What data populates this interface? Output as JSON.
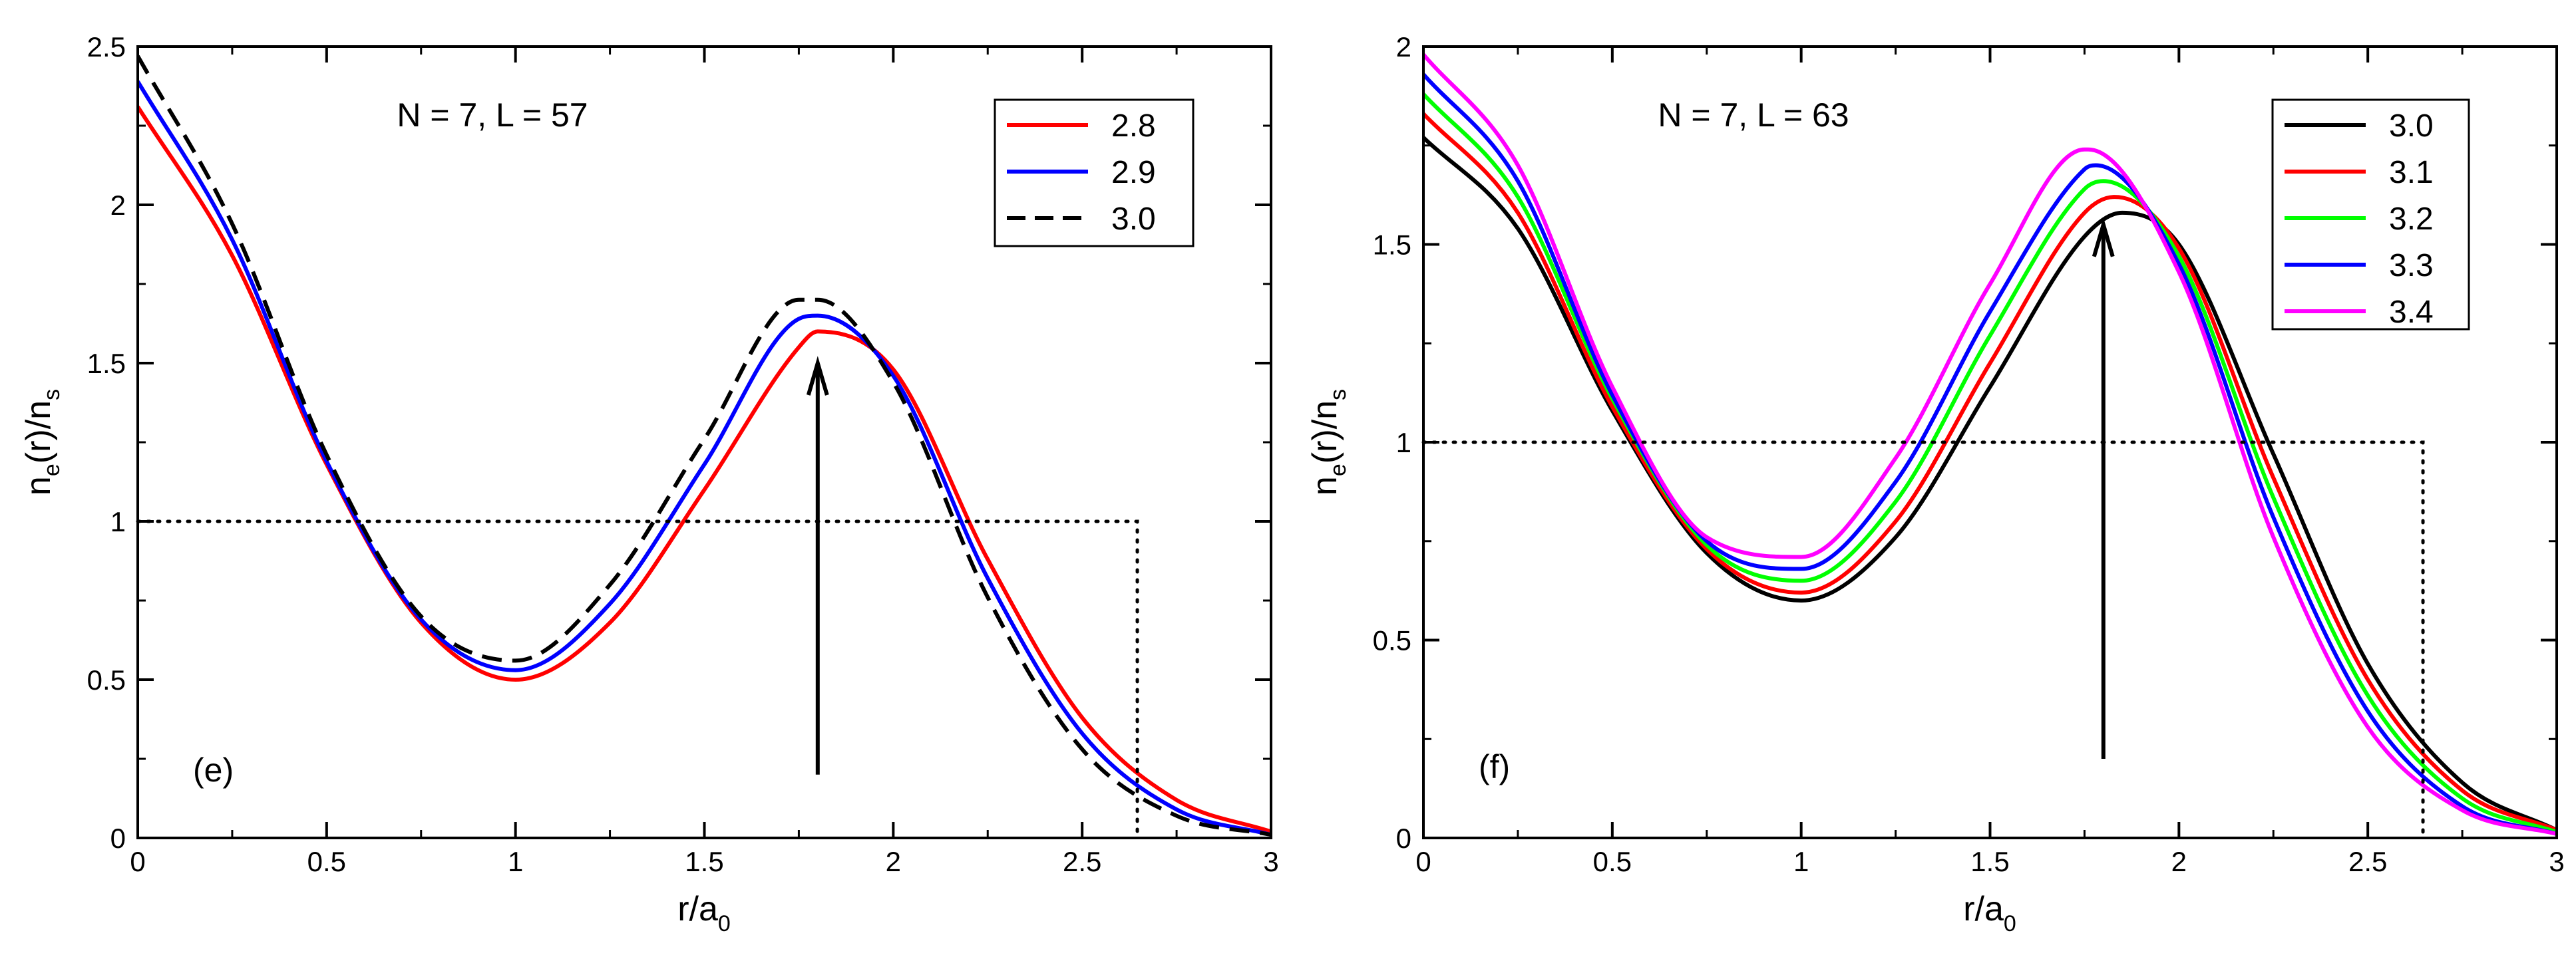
{
  "chart_data": [
    {
      "type": "line",
      "panel_label": "(e)",
      "title": "N = 7, L = 57",
      "xlabel": {
        "main": "r/a",
        "sub": "0"
      },
      "ylabel": {
        "p1": "n",
        "s1": "e",
        "p2": "(r)/n",
        "s2": "s"
      },
      "xlim": [
        0,
        3
      ],
      "ylim": [
        0,
        2.5
      ],
      "xticks": [
        0,
        0.5,
        1,
        1.5,
        2,
        2.5,
        3
      ],
      "xtick_labels": [
        "0",
        "0.5",
        "1",
        "1.5",
        "2",
        "2.5",
        "3"
      ],
      "yticks": [
        0,
        0.5,
        1,
        1.5,
        2,
        2.5
      ],
      "ytick_labels": [
        "0",
        "0.5",
        "1",
        "1.5",
        "2",
        "2.5"
      ],
      "grid": false,
      "legend_position": "top-right",
      "reference_line": {
        "x": [
          0,
          2.646,
          2.646
        ],
        "y": [
          1,
          1,
          0
        ],
        "style": "dotted"
      },
      "arrow": {
        "x": 1.8,
        "y_from": 0.2,
        "y_to": 1.5
      },
      "series": [
        {
          "name": "2.8",
          "color": "#ff0000",
          "dash": "solid",
          "x": [
            0,
            0.25,
            0.5,
            0.75,
            1.0,
            1.25,
            1.5,
            1.75,
            1.8,
            2.0,
            2.25,
            2.5,
            2.75,
            3.0
          ],
          "y": [
            2.31,
            1.84,
            1.18,
            0.68,
            0.5,
            0.68,
            1.1,
            1.55,
            1.6,
            1.48,
            0.88,
            0.38,
            0.12,
            0.02
          ]
        },
        {
          "name": "2.9",
          "color": "#0000ff",
          "dash": "solid",
          "x": [
            0,
            0.25,
            0.5,
            0.75,
            1.0,
            1.25,
            1.5,
            1.75,
            1.8,
            2.0,
            2.25,
            2.5,
            2.75,
            3.0
          ],
          "y": [
            2.39,
            1.89,
            1.19,
            0.69,
            0.53,
            0.74,
            1.18,
            1.64,
            1.65,
            1.46,
            0.82,
            0.33,
            0.09,
            0.01
          ]
        },
        {
          "name": "3.0",
          "color": "#000000",
          "dash": "dashed",
          "x": [
            0,
            0.25,
            0.5,
            0.75,
            1.0,
            1.25,
            1.5,
            1.75,
            1.8,
            2.0,
            2.25,
            2.5,
            2.75,
            3.0
          ],
          "y": [
            2.47,
            1.94,
            1.21,
            0.7,
            0.56,
            0.8,
            1.26,
            1.7,
            1.7,
            1.44,
            0.76,
            0.28,
            0.07,
            0.01
          ]
        }
      ]
    },
    {
      "type": "line",
      "panel_label": "(f)",
      "title": "N = 7, L = 63",
      "xlabel": {
        "main": "r/a",
        "sub": "0"
      },
      "ylabel": {
        "p1": "n",
        "s1": "e",
        "p2": "(r)/n",
        "s2": "s"
      },
      "xlim": [
        0,
        3
      ],
      "ylim": [
        0,
        2
      ],
      "xticks": [
        0,
        0.5,
        1,
        1.5,
        2,
        2.5,
        3
      ],
      "xtick_labels": [
        "0",
        "0.5",
        "1",
        "1.5",
        "2",
        "2.5",
        "3"
      ],
      "yticks": [
        0,
        0.5,
        1,
        1.5,
        2
      ],
      "ytick_labels": [
        "0",
        "0.5",
        "1",
        "1.5",
        "2"
      ],
      "grid": false,
      "legend_position": "top-right",
      "reference_line": {
        "x": [
          0,
          2.646,
          2.646
        ],
        "y": [
          1,
          1,
          0
        ],
        "style": "dotted"
      },
      "arrow": {
        "x": 1.8,
        "y_from": 0.2,
        "y_to": 1.55
      },
      "series": [
        {
          "name": "3.0",
          "color": "#000000",
          "dash": "solid",
          "x": [
            0,
            0.25,
            0.5,
            0.75,
            1.0,
            1.25,
            1.5,
            1.75,
            1.85,
            2.0,
            2.25,
            2.5,
            2.75,
            3.0
          ],
          "y": [
            1.77,
            1.54,
            1.08,
            0.72,
            0.6,
            0.76,
            1.14,
            1.52,
            1.58,
            1.5,
            0.97,
            0.44,
            0.14,
            0.02
          ]
        },
        {
          "name": "3.1",
          "color": "#ff0000",
          "dash": "solid",
          "x": [
            0,
            0.25,
            0.5,
            0.75,
            1.0,
            1.25,
            1.5,
            1.75,
            1.83,
            2.0,
            2.25,
            2.5,
            2.75,
            3.0
          ],
          "y": [
            1.83,
            1.58,
            1.09,
            0.73,
            0.62,
            0.8,
            1.2,
            1.58,
            1.62,
            1.49,
            0.91,
            0.4,
            0.12,
            0.02
          ]
        },
        {
          "name": "3.2",
          "color": "#00ff00",
          "dash": "solid",
          "x": [
            0,
            0.25,
            0.5,
            0.75,
            1.0,
            1.25,
            1.5,
            1.75,
            1.8,
            2.0,
            2.25,
            2.5,
            2.75,
            3.0
          ],
          "y": [
            1.88,
            1.62,
            1.11,
            0.74,
            0.65,
            0.85,
            1.27,
            1.64,
            1.66,
            1.47,
            0.86,
            0.36,
            0.1,
            0.015
          ]
        },
        {
          "name": "3.3",
          "color": "#0000ff",
          "dash": "solid",
          "x": [
            0,
            0.25,
            0.5,
            0.75,
            1.0,
            1.25,
            1.5,
            1.75,
            1.78,
            2.0,
            2.25,
            2.5,
            2.75,
            3.0
          ],
          "y": [
            1.93,
            1.66,
            1.12,
            0.75,
            0.68,
            0.9,
            1.33,
            1.69,
            1.7,
            1.45,
            0.81,
            0.32,
            0.08,
            0.01
          ]
        },
        {
          "name": "3.4",
          "color": "#ff00ff",
          "dash": "solid",
          "x": [
            0,
            0.25,
            0.5,
            0.75,
            1.0,
            1.25,
            1.5,
            1.75,
            1.76,
            2.0,
            2.25,
            2.5,
            2.75,
            3.0
          ],
          "y": [
            1.98,
            1.7,
            1.14,
            0.76,
            0.71,
            0.96,
            1.4,
            1.74,
            1.74,
            1.43,
            0.76,
            0.28,
            0.07,
            0.01
          ]
        }
      ]
    }
  ]
}
